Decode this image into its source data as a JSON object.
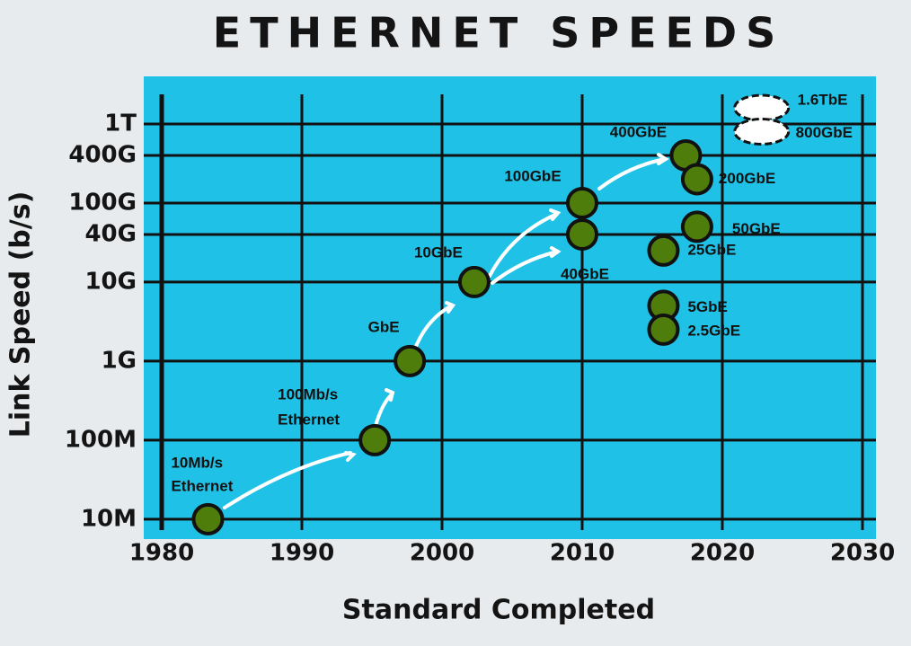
{
  "chart_data": {
    "type": "scatter",
    "title": "ETHERNET SPEEDS",
    "x_label": "Standard Completed",
    "y_label": "Link Speed (b/s)",
    "xlim": [
      1980,
      2030
    ],
    "xticks": [
      1980,
      1990,
      2000,
      2010,
      2020,
      2030
    ],
    "ylim": [
      5600000,
      4000000000000
    ],
    "log_y": true,
    "grid": true,
    "yticks": [
      {
        "value": 10000000,
        "label": "10M"
      },
      {
        "value": 100000000,
        "label": "100M"
      },
      {
        "value": 1000000000,
        "label": "1G"
      },
      {
        "value": 10000000000,
        "label": "10G"
      },
      {
        "value": 40000000000,
        "label": "40G"
      },
      {
        "value": 100000000000,
        "label": "100G"
      },
      {
        "value": 400000000000,
        "label": "400G"
      },
      {
        "value": 1000000000000,
        "label": "1T"
      }
    ],
    "series": [
      {
        "color": "#4e7d0c",
        "style": "solid",
        "x": [
          1983.3,
          1995.2,
          1997.7,
          2002.3,
          2010,
          2010,
          2017.4,
          2018.2,
          2018.2,
          2015.8,
          2015.8,
          2015.8
        ],
        "values": [
          10000000,
          100000000,
          1000000000,
          10000000000,
          40000000000,
          100000000000,
          400000000000,
          200000000000,
          50000000000,
          25000000000,
          5000000000,
          2500000000
        ],
        "labels": [
          [
            "10Mb/s",
            "Ethernet"
          ],
          [
            "100Mb/s",
            "Ethernet"
          ],
          [
            "GbE"
          ],
          [
            "10GbE"
          ],
          [
            "40GbE"
          ],
          [
            "100GbE"
          ],
          [
            "400GbE"
          ],
          [
            "200GbE"
          ],
          [
            "50GbE"
          ],
          [
            "25GbE"
          ],
          [
            "5GbE"
          ],
          [
            "2.5GbE"
          ]
        ]
      },
      {
        "color": "#ffffff",
        "style": "dashed",
        "x": [
          2022.8,
          2022.8
        ],
        "values": [
          1600000000000,
          800000000000
        ],
        "labels": [
          [
            "1.6TbE"
          ],
          [
            "800GbE"
          ]
        ]
      }
    ]
  }
}
